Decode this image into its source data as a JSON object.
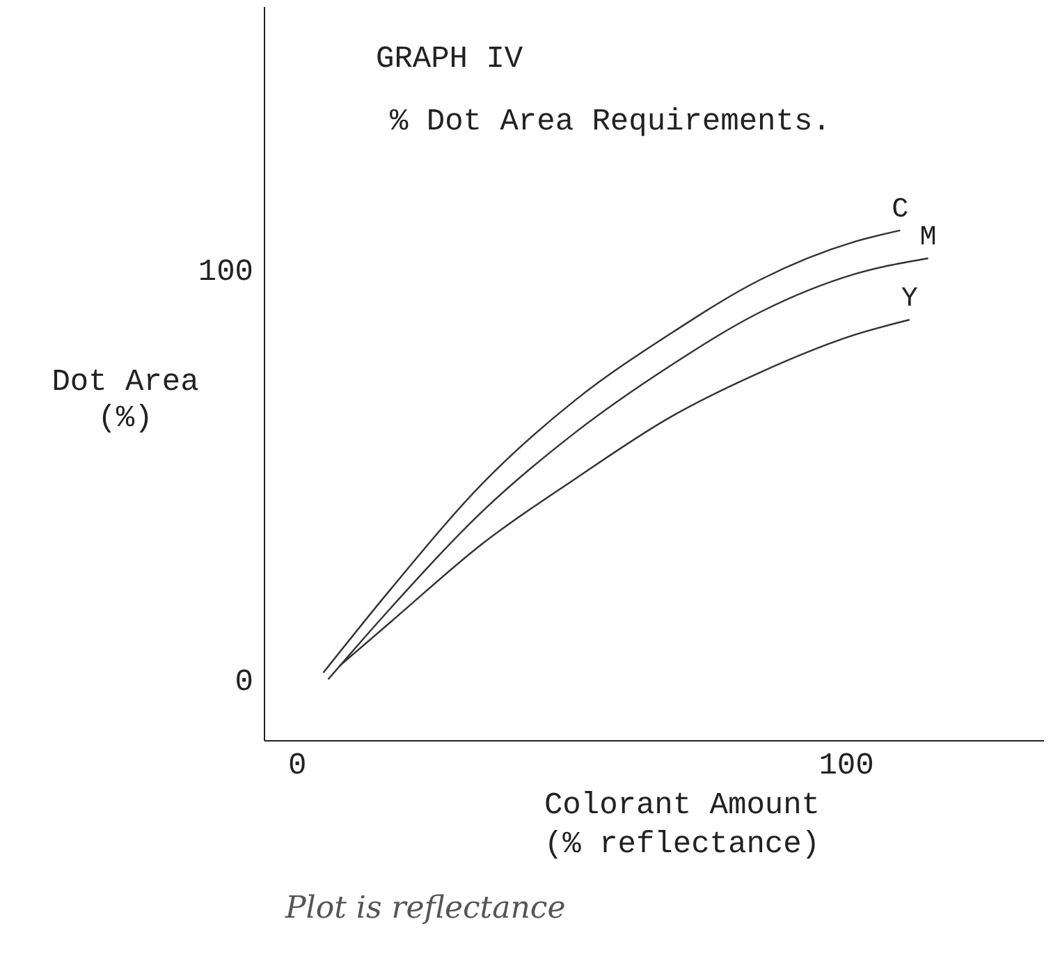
{
  "chart_data": {
    "type": "line",
    "title": "GRAPH IV",
    "subtitle": "% Dot Area Requirements.",
    "xlabel": "Colorant Amount\n(% reflectance)",
    "ylabel": "Dot Area\n(%)",
    "annotations": [
      "Plot is reflectance"
    ],
    "xlim": [
      -6,
      136
    ],
    "ylim": [
      -15,
      164
    ],
    "xticks": [
      0,
      100
    ],
    "yticks": [
      0,
      100
    ],
    "grid": false,
    "legend": false,
    "marker": "none",
    "line_style": "solid",
    "series": [
      {
        "name": "C",
        "color": "#333333",
        "x": [
          4.7,
          17,
          33.8,
          50.7,
          67.6,
          84.5,
          101.4,
          109.8
        ],
        "values": [
          1.6,
          22,
          47.9,
          68.2,
          84,
          97.6,
          106.7,
          109.5
        ]
      },
      {
        "name": "M",
        "color": "#333333",
        "x": [
          5.6,
          17,
          33.8,
          50.7,
          67.6,
          84.5,
          101.4,
          114.9
        ],
        "values": [
          0,
          17.4,
          41.1,
          60.3,
          76.2,
          89.7,
          98.8,
          102.7
        ]
      },
      {
        "name": "Y",
        "color": "#333333",
        "x": [
          7.7,
          17,
          33.8,
          50.7,
          67.6,
          84.5,
          101.4,
          111.5
        ],
        "values": [
          3.3,
          14,
          33.2,
          49,
          63.7,
          75,
          84,
          87.7
        ]
      }
    ]
  }
}
